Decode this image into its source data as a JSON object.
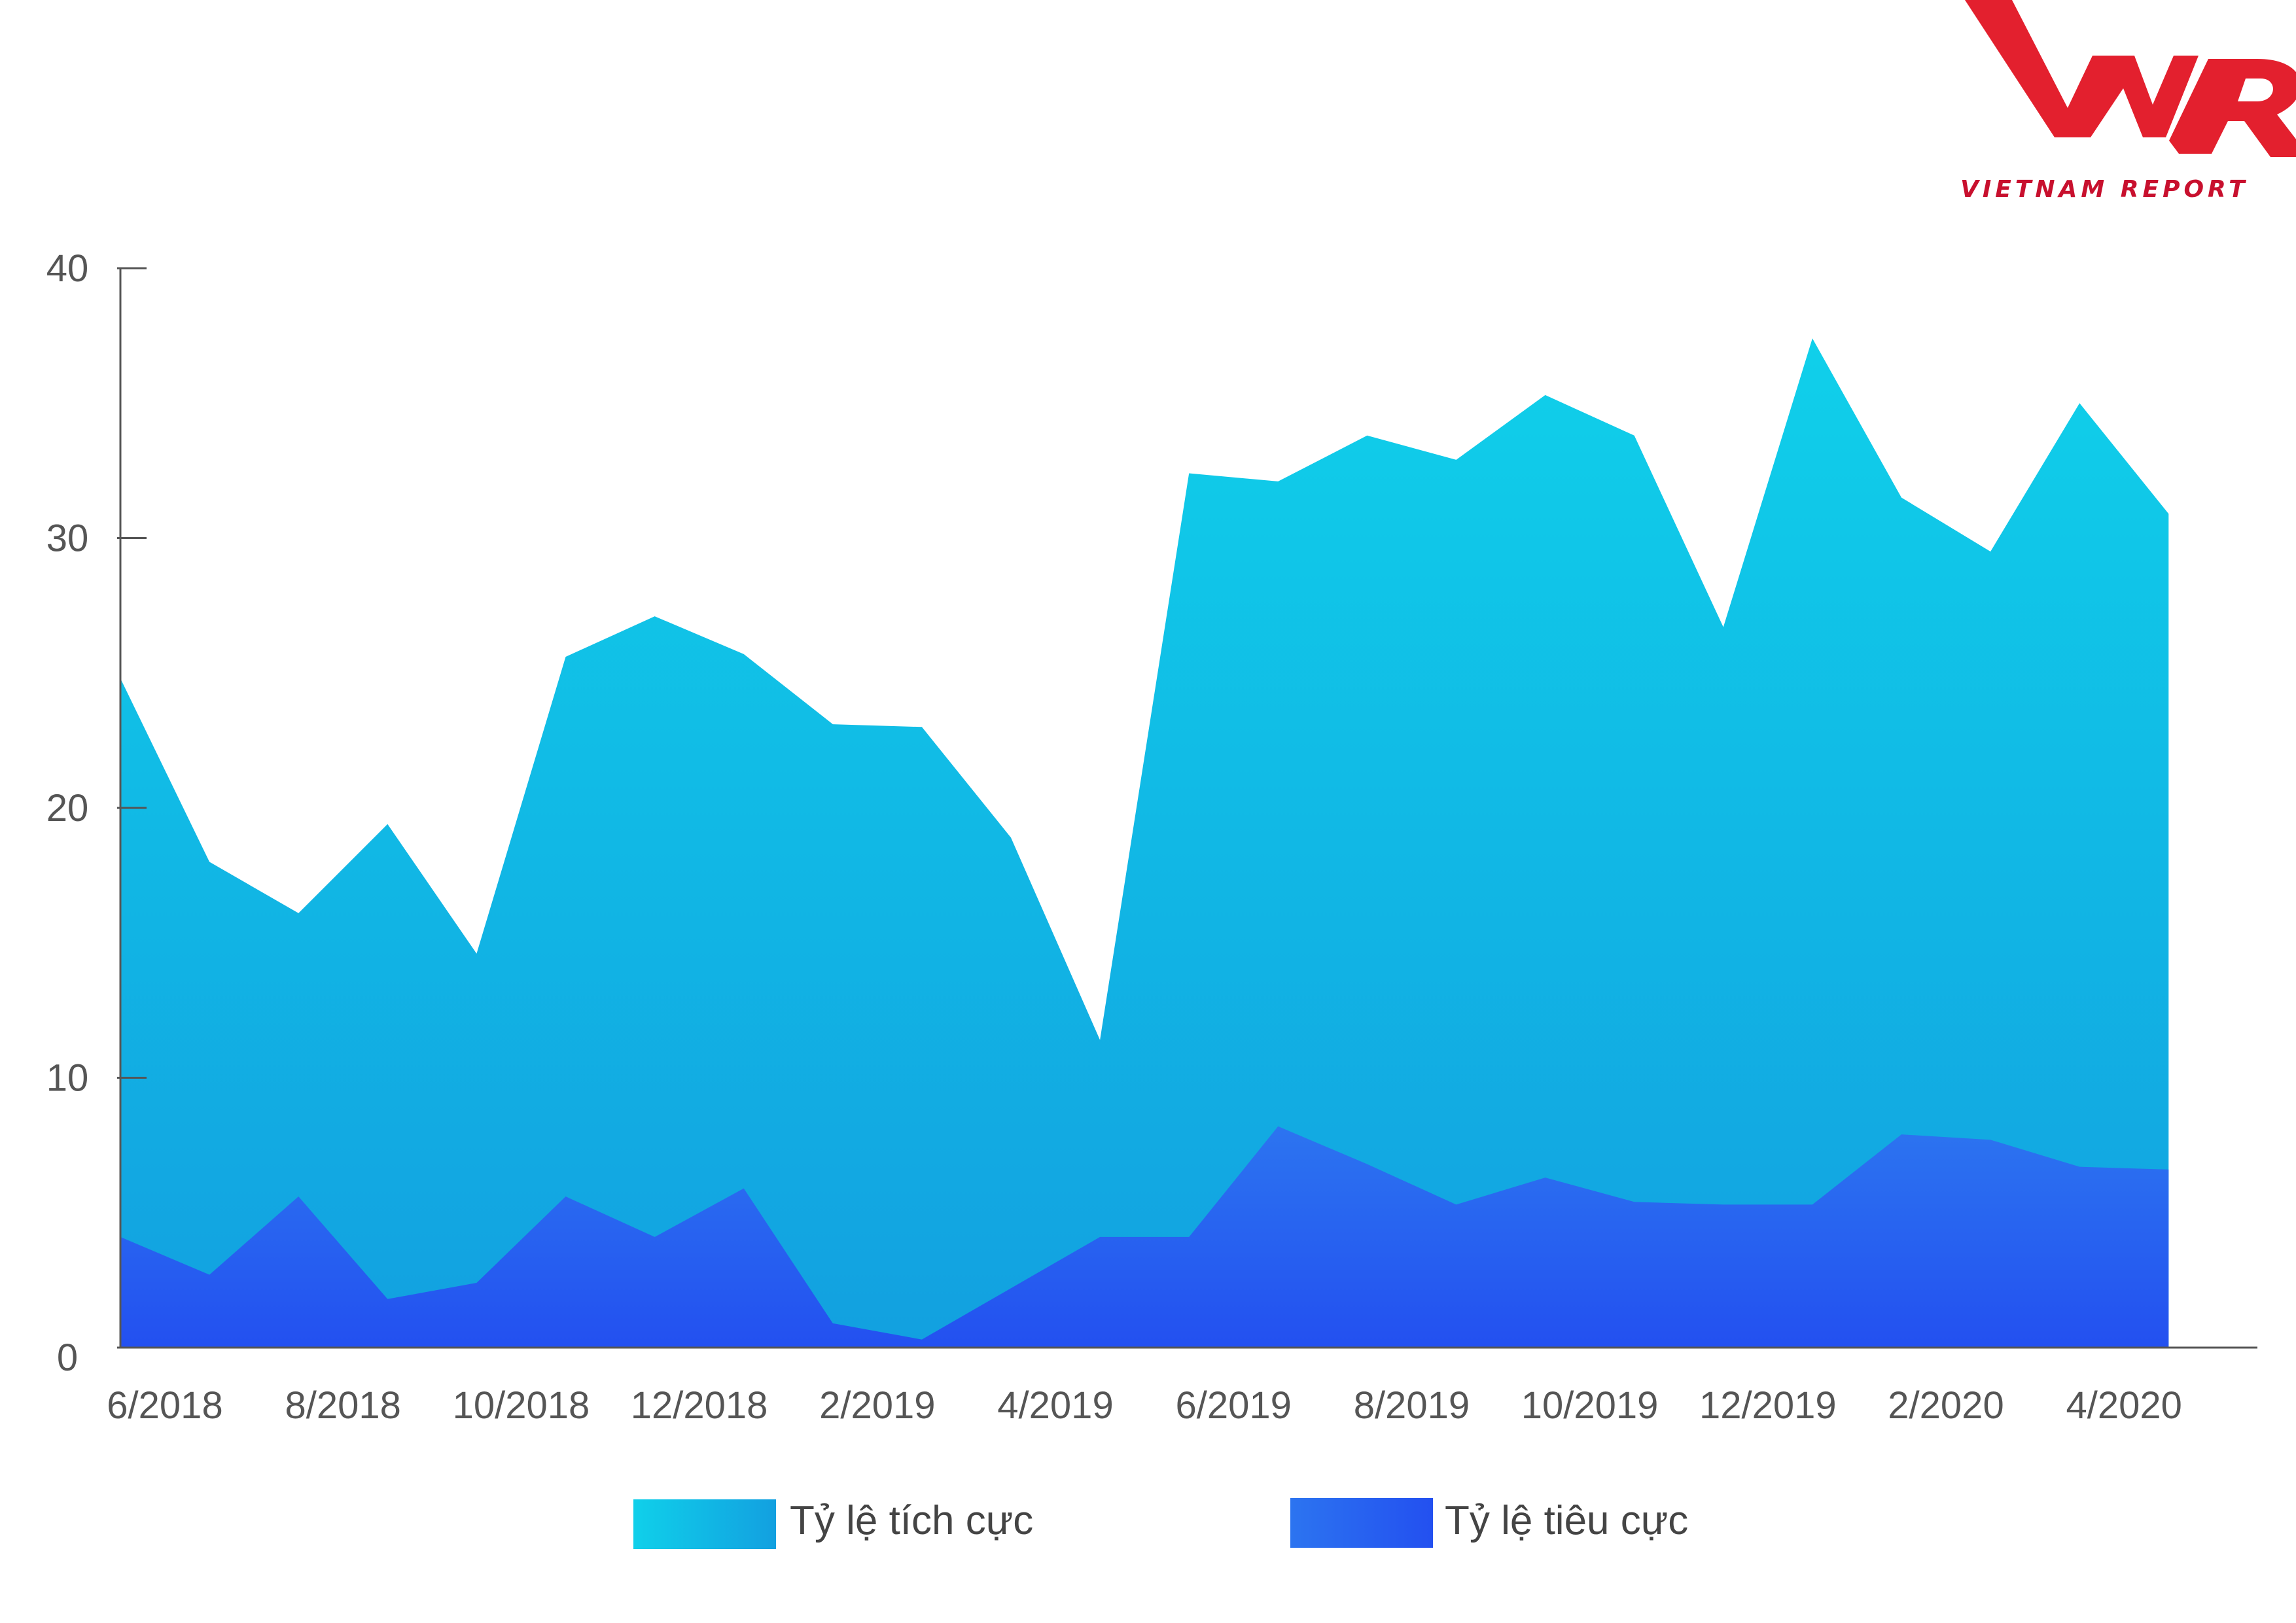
{
  "brand": {
    "logo_text": "VIETNAM REPORT",
    "color": "#e3202e"
  },
  "chart_data": {
    "type": "area",
    "title": "",
    "xlabel": "",
    "ylabel": "",
    "ylim": [
      0,
      40
    ],
    "yticks": [
      "0",
      "10",
      "20",
      "30",
      "40"
    ],
    "x": [
      "6/2018",
      "7/2018",
      "8/2018",
      "9/2018",
      "10/2018",
      "11/2018",
      "12/2018",
      "1/2019",
      "2/2019",
      "3/2019",
      "4/2019",
      "5/2019",
      "6/2019",
      "7/2019",
      "8/2019",
      "9/2019",
      "10/2019",
      "11/2019",
      "12/2019",
      "1/2020",
      "2/2020",
      "3/2020",
      "4/2020",
      "5/2020"
    ],
    "xtick_labels": [
      "6/2018",
      "8/2018",
      "10/2018",
      "12/2018",
      "2/2019",
      "4/2019",
      "6/2019",
      "8/2019",
      "10/2019",
      "12/2019",
      "2/2020",
      "4/2020"
    ],
    "series": [
      {
        "name": "Tỷ lệ tích cực",
        "color_top": "#10d0ea",
        "color_bottom": "#12a0e0",
        "values": [
          24.8,
          18.0,
          16.1,
          19.4,
          14.6,
          25.6,
          27.1,
          25.7,
          23.1,
          23.0,
          18.9,
          11.4,
          32.4,
          32.1,
          33.8,
          32.9,
          35.3,
          33.8,
          26.7,
          37.4,
          31.5,
          29.5,
          35.0,
          30.9
        ]
      },
      {
        "name": "Tỷ lệ tiêu cực",
        "color_top": "#2c74f0",
        "color_bottom": "#2350f0",
        "values": [
          4.1,
          2.7,
          5.6,
          1.8,
          2.4,
          5.6,
          4.1,
          5.9,
          0.9,
          0.3,
          2.2,
          4.1,
          4.1,
          8.2,
          6.8,
          5.3,
          6.3,
          5.4,
          5.3,
          5.3,
          7.9,
          7.7,
          6.7,
          6.6
        ]
      }
    ],
    "legend": {
      "position": "bottom"
    },
    "grid": false
  }
}
